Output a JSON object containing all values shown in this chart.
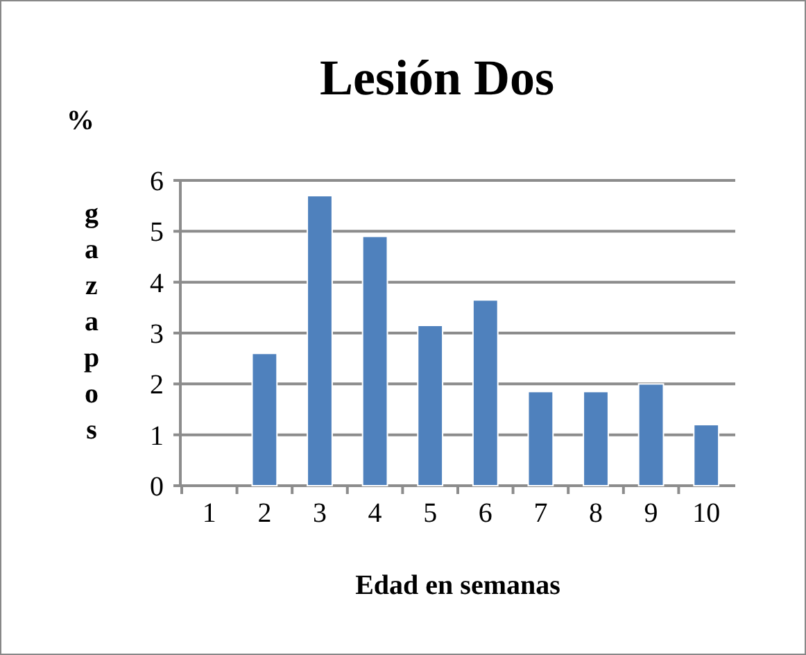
{
  "chart_data": {
    "type": "bar",
    "title": "Lesión Dos",
    "xlabel": "Edad en semanas",
    "ylabel": "% gazapos",
    "categories": [
      "1",
      "2",
      "3",
      "4",
      "5",
      "6",
      "7",
      "8",
      "9",
      "10"
    ],
    "values": [
      0,
      2.6,
      5.7,
      4.9,
      3.15,
      3.65,
      1.85,
      1.85,
      2,
      1.2
    ],
    "color": "#4f81bd",
    "ylim": [
      0,
      6
    ],
    "yticks": [
      0,
      1,
      2,
      3,
      4,
      5,
      6
    ],
    "grid": "y"
  }
}
